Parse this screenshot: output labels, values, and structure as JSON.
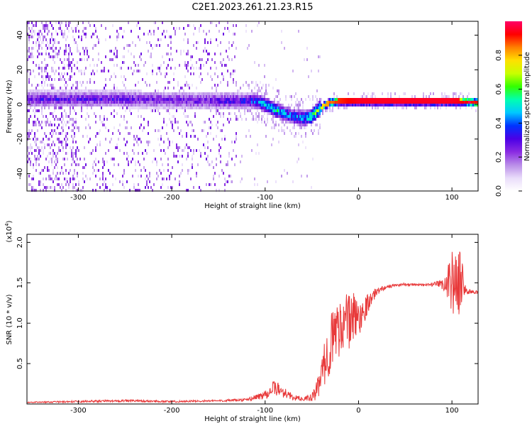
{
  "title": "C2E1.2023.261.21.23.R15",
  "colors": {
    "snr_line": "#e8393a",
    "frame": "#000000"
  },
  "chart_data": [
    {
      "type": "heatmap",
      "xlabel": "Height of straight line (km)",
      "ylabel": "Frequency (Hz)",
      "xlim": [
        -355,
        128
      ],
      "ylim": [
        -50,
        48
      ],
      "xticks": [
        -300,
        -200,
        -100,
        0,
        100
      ],
      "yticks": [
        -40,
        -20,
        0,
        20,
        40
      ],
      "colorbar": {
        "label": "Normalized spectral amplitude",
        "range": [
          0,
          1
        ],
        "ticks": [
          0.0,
          0.2,
          0.4,
          0.6,
          0.8
        ],
        "colormap": [
          "#ffffff",
          "#e9dcfa",
          "#b98ce8",
          "#8a2be2",
          "#4b00e6",
          "#0033ff",
          "#00c8ff",
          "#00ffb0",
          "#33ff00",
          "#c8ff00",
          "#ffe000",
          "#ff8000",
          "#ff0000",
          "#ff0066"
        ]
      },
      "trend": {
        "x": [
          -355,
          -300,
          -250,
          -200,
          -150,
          -125,
          -110,
          -100,
          -90,
          -80,
          -70,
          -60,
          -50,
          -45,
          -40,
          -35,
          -30,
          -20,
          0,
          50,
          100,
          128
        ],
        "y": [
          3,
          3,
          3,
          2.5,
          2,
          2,
          2,
          0,
          -3,
          -5,
          -7,
          -8,
          -7,
          -4,
          -2,
          0,
          1,
          2,
          2,
          2,
          2,
          1
        ],
        "amplitude": [
          0.3,
          0.3,
          0.3,
          0.28,
          0.3,
          0.35,
          0.45,
          0.5,
          0.55,
          0.5,
          0.45,
          0.5,
          0.6,
          0.7,
          0.75,
          0.8,
          0.85,
          0.9,
          0.95,
          0.95,
          0.95,
          0.9
        ]
      }
    },
    {
      "type": "line",
      "series_color": "#e8393a",
      "xlabel": "Height of straight line (km)",
      "ylabel": "SNR (10 * v/v)",
      "y_multiplier_label": "(x10",
      "y_multiplier_exp": "4",
      "y_multiplier_close": ")",
      "xlim": [
        -355,
        128
      ],
      "ylim": [
        0,
        2.1
      ],
      "xticks": [
        -300,
        -200,
        -100,
        0,
        100
      ],
      "yticks": [
        0.5,
        1.0,
        1.5,
        2.0
      ],
      "ytick_labels": [
        "0.5",
        "1.0",
        "1.5",
        "2.0"
      ],
      "envelope": {
        "x": [
          -355,
          -300,
          -250,
          -200,
          -150,
          -120,
          -110,
          -100,
          -90,
          -80,
          -70,
          -60,
          -50,
          -45,
          -40,
          -35,
          -30,
          -25,
          -20,
          -15,
          -10,
          -5,
          0,
          5,
          10,
          20,
          30,
          40,
          50,
          60,
          70,
          80,
          90,
          95,
          100,
          105,
          110,
          115,
          120,
          128
        ],
        "mean": [
          0.02,
          0.03,
          0.04,
          0.03,
          0.04,
          0.05,
          0.08,
          0.12,
          0.2,
          0.15,
          0.08,
          0.06,
          0.08,
          0.15,
          0.35,
          0.55,
          0.75,
          0.9,
          0.95,
          1.05,
          1.0,
          1.1,
          1.05,
          1.15,
          1.25,
          1.4,
          1.45,
          1.47,
          1.48,
          1.48,
          1.47,
          1.48,
          1.48,
          1.5,
          1.55,
          1.45,
          1.55,
          1.4,
          1.39,
          1.38
        ],
        "noise": [
          0.005,
          0.01,
          0.012,
          0.01,
          0.01,
          0.015,
          0.03,
          0.05,
          0.08,
          0.06,
          0.03,
          0.02,
          0.04,
          0.1,
          0.15,
          0.25,
          0.3,
          0.3,
          0.3,
          0.3,
          0.3,
          0.25,
          0.2,
          0.15,
          0.1,
          0.04,
          0.02,
          0.015,
          0.015,
          0.015,
          0.015,
          0.02,
          0.05,
          0.15,
          0.35,
          0.35,
          0.3,
          0.05,
          0.02,
          0.02
        ]
      }
    }
  ]
}
